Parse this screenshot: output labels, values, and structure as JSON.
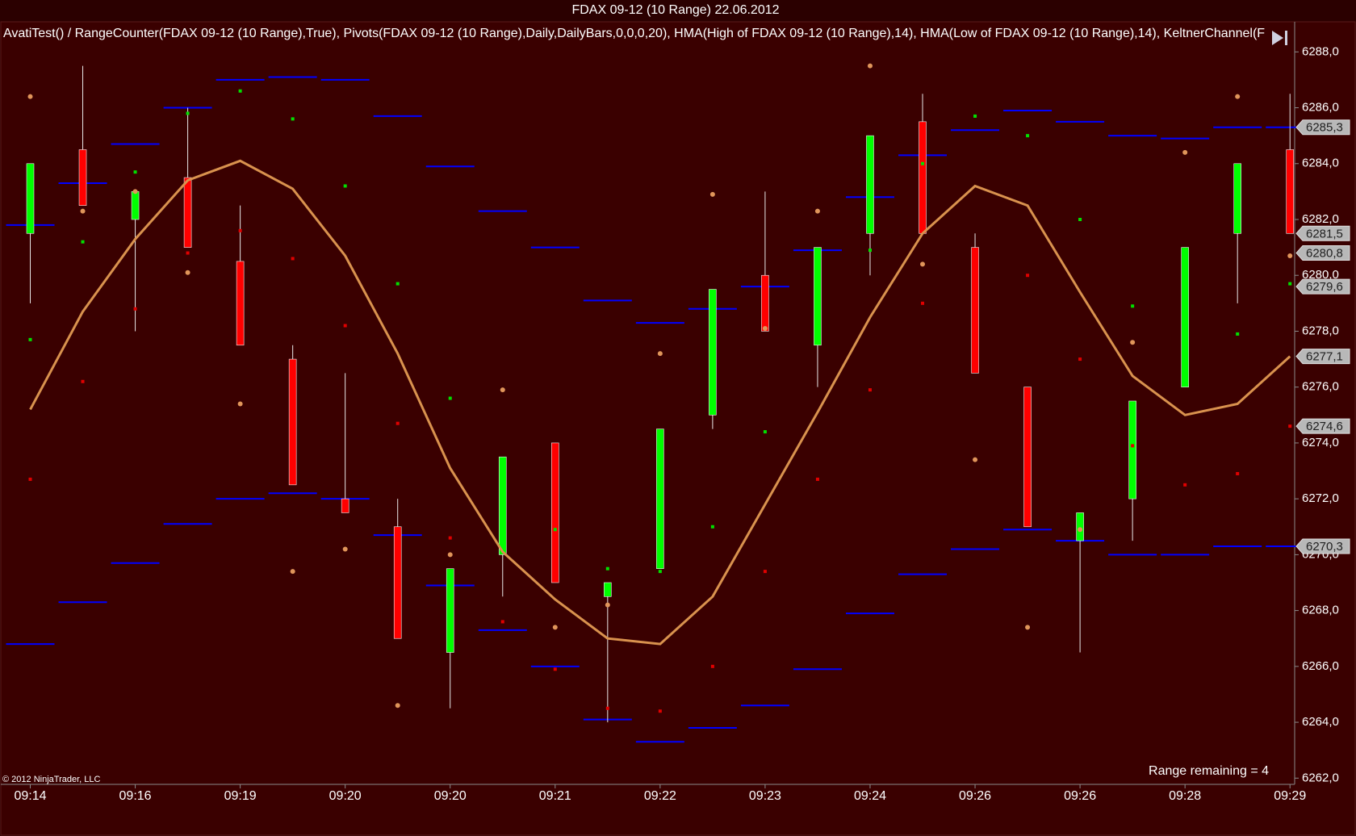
{
  "chart_data": {
    "type": "candlestick",
    "title": "FDAX 09-12 (10 Range)  22.06.2012",
    "subtitle": "AvatiTest() / RangeCounter(FDAX 09-12 (10 Range),True), Pivots(FDAX 09-12 (10 Range),Daily,DailyBars,0,0,0,20), HMA(High of FDAX 09-12 (10 Range),14), HMA(Low of FDAX 09-12 (10 Range),14), KeltnerChannel(F",
    "annotations": [
      "© 2012 NinjaTrader, LLC",
      "Range remaining = 4"
    ],
    "categories": [
      "09:14",
      null,
      "09:16",
      null,
      "09:19",
      null,
      "09:20",
      null,
      "09:20",
      null,
      "09:21",
      null,
      "09:22",
      null,
      "09:23",
      null,
      "09:24",
      null,
      "09:26",
      null,
      "09:26",
      null,
      "09:28",
      null,
      "09:29"
    ],
    "open": [
      6281.5,
      6284.5,
      6282.0,
      6283.5,
      6280.5,
      6277.0,
      6272.0,
      6271.0,
      6266.5,
      6270.0,
      6274.0,
      6268.5,
      6269.5,
      6275.0,
      6280.0,
      6277.5,
      6281.5,
      6285.5,
      6281.0,
      6276.0,
      6270.5,
      6272.0,
      6276.0,
      6281.5,
      6284.5
    ],
    "high": [
      6284.0,
      6287.5,
      6283.0,
      6286.0,
      6282.5,
      6277.5,
      6276.5,
      6272.0,
      6269.5,
      6273.5,
      6274.0,
      6269.0,
      6274.5,
      6279.5,
      6283.0,
      6281.0,
      6285.0,
      6286.5,
      6281.5,
      6276.0,
      6271.5,
      6275.5,
      6281.0,
      6284.0,
      6286.5
    ],
    "low": [
      6279.0,
      6282.5,
      6278.0,
      6281.0,
      6277.5,
      6272.5,
      6271.5,
      6267.0,
      6264.5,
      6268.5,
      6269.0,
      6264.0,
      6269.5,
      6274.5,
      6278.0,
      6276.0,
      6280.0,
      6281.5,
      6276.5,
      6271.0,
      6266.5,
      6270.5,
      6276.0,
      6279.0,
      6281.5
    ],
    "close": [
      6284.0,
      6282.5,
      6283.0,
      6281.0,
      6277.5,
      6272.5,
      6271.5,
      6267.0,
      6269.5,
      6273.5,
      6269.0,
      6269.0,
      6274.5,
      6279.5,
      6278.0,
      6281.0,
      6285.0,
      6281.5,
      6276.5,
      6271.0,
      6271.5,
      6275.5,
      6281.0,
      6284.0,
      6281.5
    ],
    "up_color": "#00ff00",
    "down_color": "#ff0000",
    "wick_color": "#e8e8e8",
    "series": [
      {
        "type": "line",
        "color": "#d9924e",
        "values": [
          6275.2,
          6278.7,
          6281.3,
          6283.4,
          6284.1,
          6283.1,
          6280.7,
          6277.2,
          6273.1,
          6270.1,
          6268.4,
          6267.0,
          6266.8,
          6268.5,
          6271.8,
          6275.1,
          6278.5,
          6281.5,
          6283.2,
          6282.5,
          6279.4,
          6276.4,
          6275.0,
          6275.4,
          6277.1
        ]
      },
      {
        "type": "segment",
        "color": "#0000ff",
        "values": [
          6281.8,
          6283.3,
          6284.7,
          6286.0,
          6287.0,
          6287.1,
          6287.0,
          6285.7,
          6283.9,
          6282.3,
          6281.0,
          6279.1,
          6278.3,
          6278.8,
          6279.6,
          6280.9,
          6282.8,
          6284.3,
          6285.2,
          6285.9,
          6285.5,
          6285.0,
          6284.9,
          6285.3,
          6285.3
        ]
      },
      {
        "type": "segment",
        "color": "#0000ff",
        "values": [
          6266.8,
          6268.3,
          6269.7,
          6271.1,
          6272.0,
          6272.2,
          6272.0,
          6270.7,
          6268.9,
          6267.3,
          6266.0,
          6264.1,
          6263.3,
          6263.8,
          6264.6,
          6265.9,
          6267.9,
          6269.3,
          6270.2,
          6270.9,
          6270.5,
          6270.0,
          6270.0,
          6270.3,
          6270.3
        ]
      },
      {
        "type": "dot",
        "color": "#e0955a",
        "values": [
          6286.4,
          6282.3,
          6283.0,
          6280.1,
          6275.4,
          6269.4,
          6270.2,
          6264.6,
          6270.0,
          6275.9,
          6267.4,
          6268.2,
          6277.2,
          6282.9,
          6278.1,
          6282.3,
          6287.5,
          6280.4,
          6273.4,
          6267.4,
          6270.9,
          6277.6,
          6284.4,
          6286.4,
          6280.7
        ]
      },
      {
        "type": "square",
        "color": "#00e000",
        "values": [
          6277.7,
          6281.2,
          6283.7,
          6285.8,
          6286.6,
          6285.6,
          6283.2,
          6279.7,
          6275.6,
          null,
          6270.9,
          6269.5,
          6269.4,
          6271.0,
          6274.4,
          null,
          6280.9,
          6284.0,
          6285.7,
          6285.0,
          6282.0,
          6278.9,
          null,
          6277.9,
          6279.7
        ]
      },
      {
        "type": "square",
        "color": "#e00000",
        "values": [
          6272.7,
          6276.2,
          6278.8,
          6280.8,
          6281.6,
          6280.6,
          6278.2,
          6274.7,
          6270.6,
          6267.6,
          6265.9,
          6264.5,
          6264.4,
          6266.0,
          6269.4,
          6272.7,
          6275.9,
          6279.0,
          null,
          6280.0,
          6277.0,
          6273.9,
          6272.5,
          6272.9,
          6274.6
        ]
      }
    ],
    "price_markers": [
      {
        "value": 6285.3,
        "label": "6285,3"
      },
      {
        "value": 6281.5,
        "label": "6281,5"
      },
      {
        "value": 6280.8,
        "label": "6280,8"
      },
      {
        "value": 6279.6,
        "label": "6279,6"
      },
      {
        "value": 6277.1,
        "label": "6277,1"
      },
      {
        "value": 6274.6,
        "label": "6274,6"
      },
      {
        "value": 6270.3,
        "label": "6270,3"
      }
    ],
    "ylim": [
      6262,
      6288
    ],
    "yticks": [
      {
        "value": 6262,
        "label": "6262,0"
      },
      {
        "value": 6264,
        "label": "6264,0"
      },
      {
        "value": 6266,
        "label": "6266,0"
      },
      {
        "value": 6268,
        "label": "6268,0"
      },
      {
        "value": 6270,
        "label": "6270,0"
      },
      {
        "value": 6272,
        "label": "6272,0"
      },
      {
        "value": 6274,
        "label": "6274,0"
      },
      {
        "value": 6276,
        "label": "6276,0"
      },
      {
        "value": 6278,
        "label": "6278,0"
      },
      {
        "value": 6280,
        "label": "6280,0"
      },
      {
        "value": 6282,
        "label": "6282,0"
      },
      {
        "value": 6284,
        "label": "6284,0"
      },
      {
        "value": 6286,
        "label": "6286,0"
      },
      {
        "value": 6288,
        "label": "6288,0"
      }
    ],
    "y_axis_side": "right",
    "grid": false
  }
}
